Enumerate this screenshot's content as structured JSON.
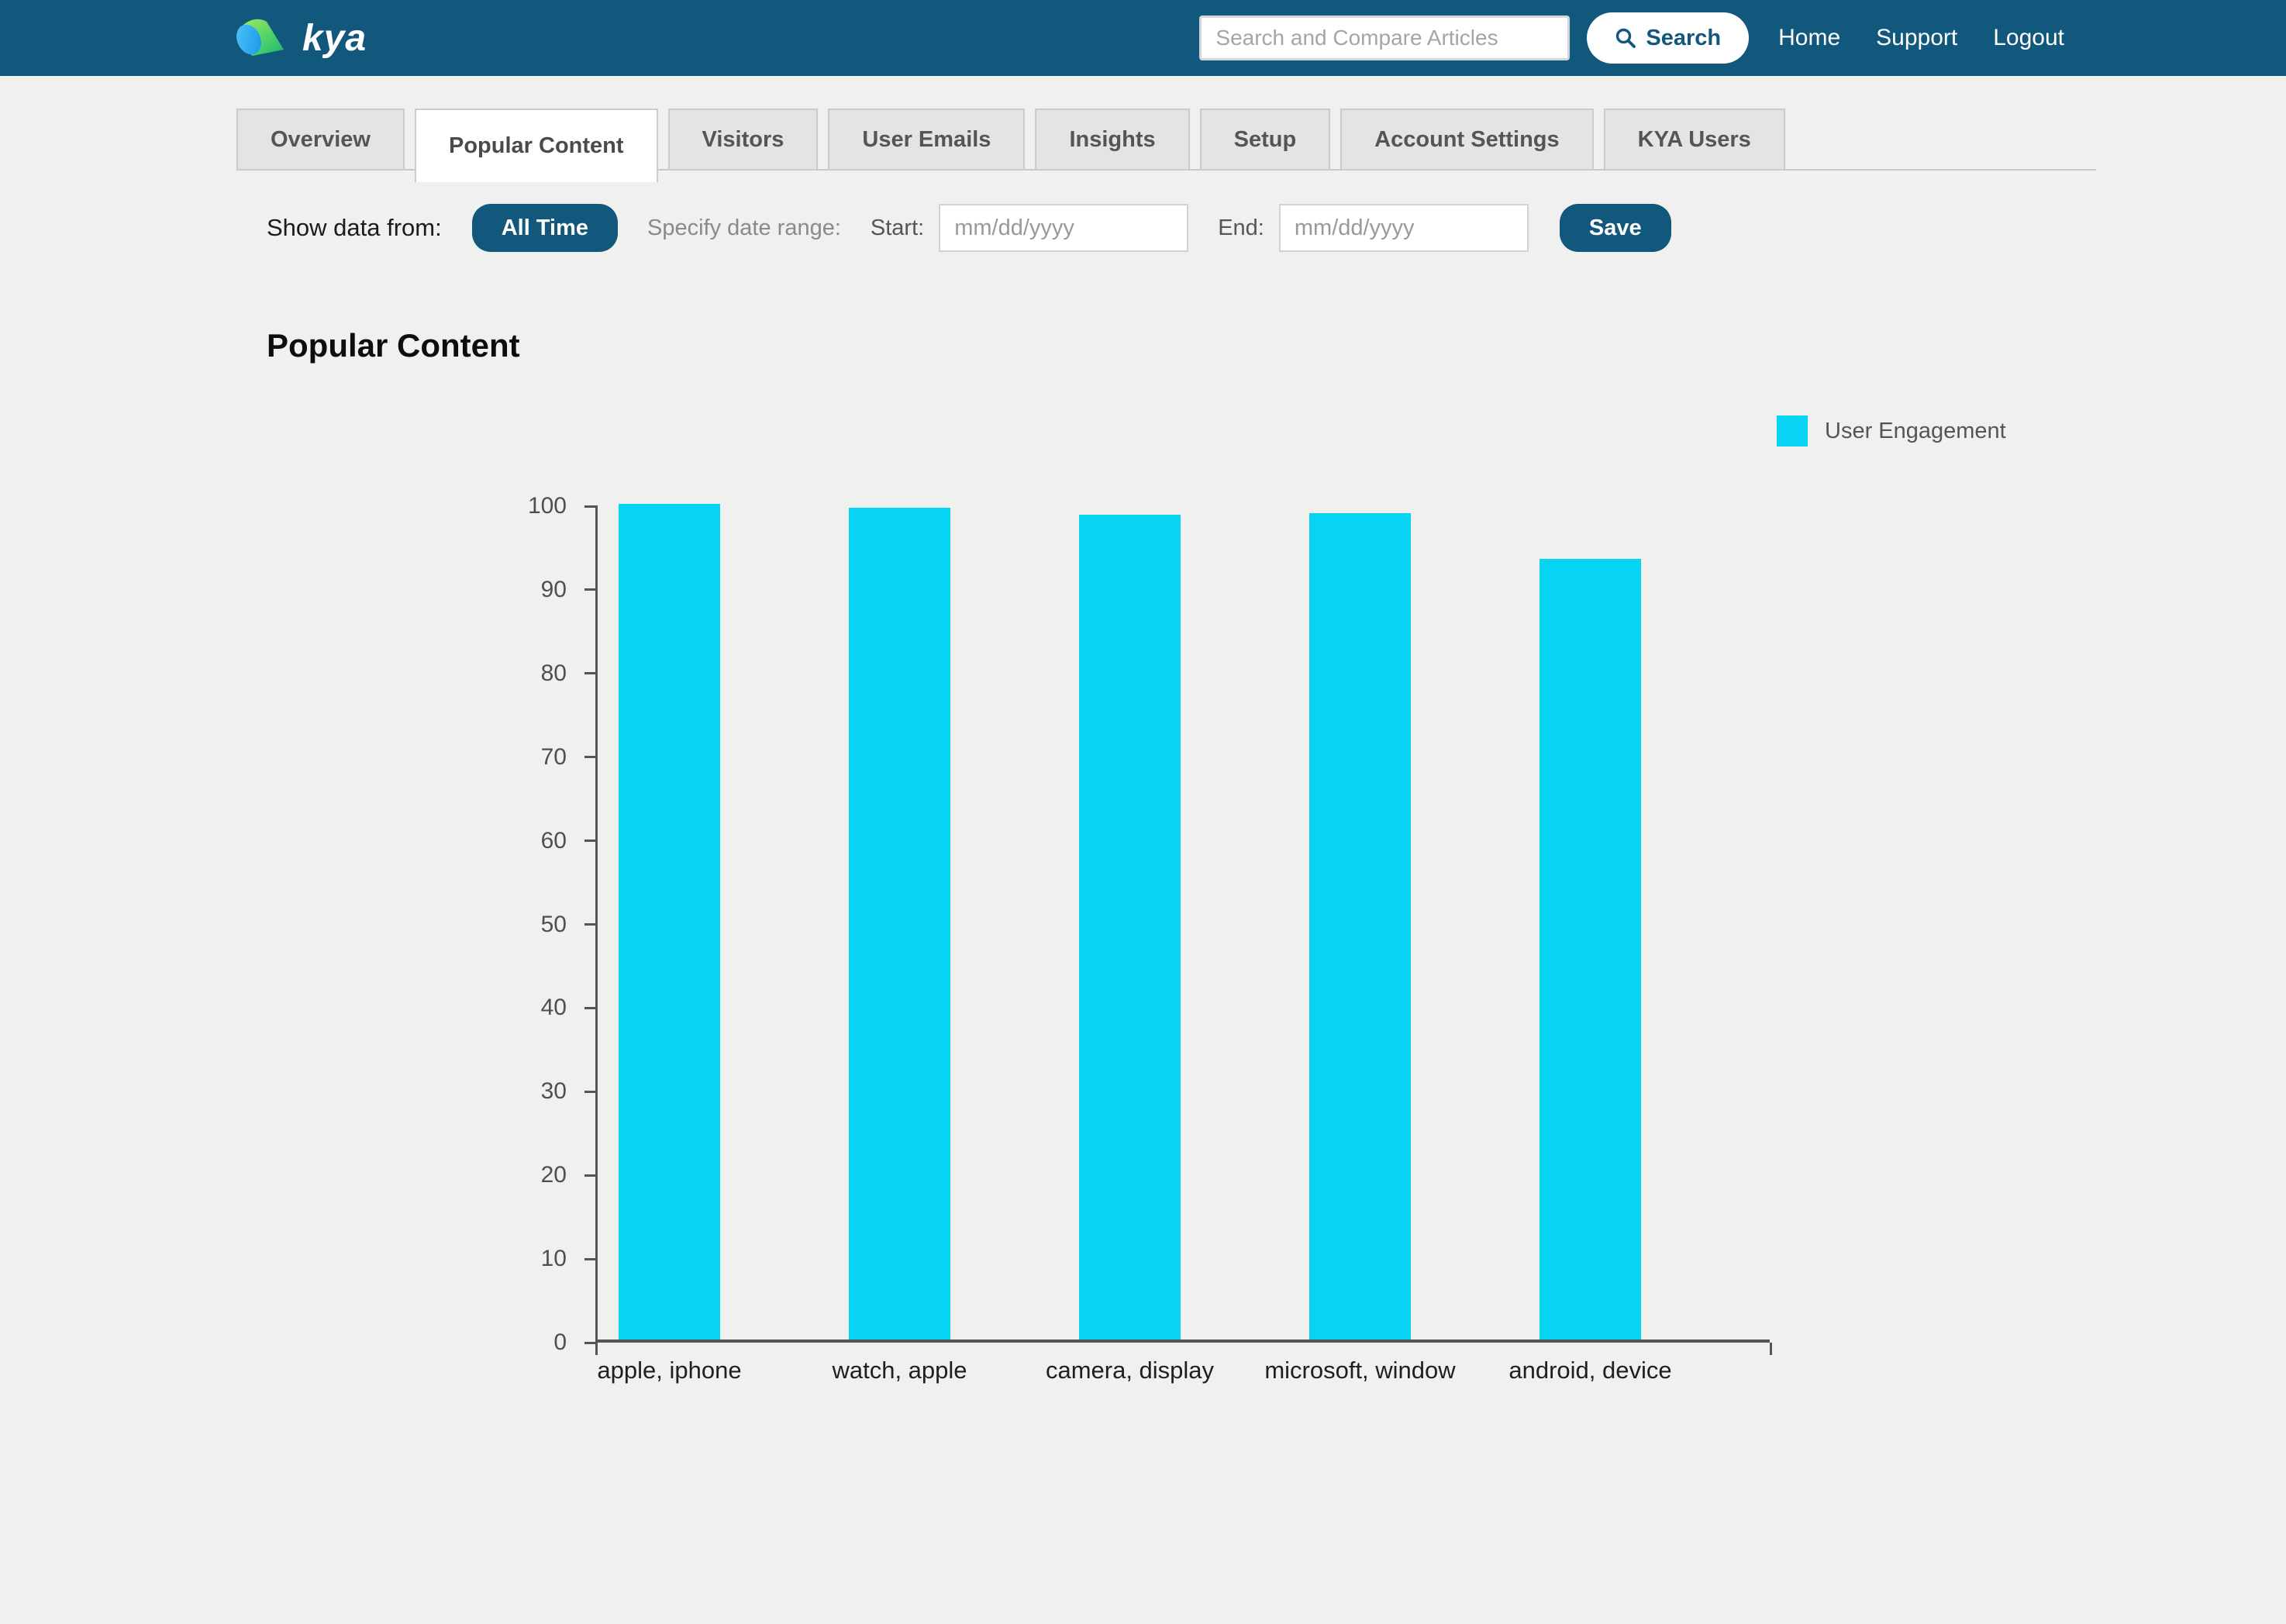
{
  "navbar": {
    "logo_text": "kya",
    "search_placeholder": "Search and Compare Articles",
    "search_button_label": "Search",
    "links": [
      {
        "label": "Home"
      },
      {
        "label": "Support"
      },
      {
        "label": "Logout"
      }
    ]
  },
  "tabs": [
    {
      "label": "Overview",
      "active": false
    },
    {
      "label": "Popular Content",
      "active": true
    },
    {
      "label": "Visitors",
      "active": false
    },
    {
      "label": "User Emails",
      "active": false
    },
    {
      "label": "Insights",
      "active": false
    },
    {
      "label": "Setup",
      "active": false
    },
    {
      "label": "Account Settings",
      "active": false
    },
    {
      "label": "KYA Users",
      "active": false
    }
  ],
  "filter": {
    "show_label": "Show data from:",
    "all_time_button": "All Time",
    "range_label": "Specify date range:",
    "start_label": "Start:",
    "start_placeholder": "mm/dd/yyyy",
    "end_label": "End:",
    "end_placeholder": "mm/dd/yyyy",
    "save_button": "Save"
  },
  "section_title": "Popular Content",
  "legend": {
    "label": "User Engagement",
    "color": "#06d4f2"
  },
  "chart_data": {
    "type": "bar",
    "title": "Popular Content",
    "categories": [
      "apple, iphone",
      "watch, apple",
      "camera, display",
      "microsoft, window",
      "android, device"
    ],
    "series": [
      {
        "name": "User Engagement",
        "values": [
          99.9,
          99.4,
          98.6,
          98.8,
          93.3
        ]
      }
    ],
    "xlabel": "",
    "ylabel": "",
    "ylim": [
      0,
      100
    ],
    "ytick_step": 10,
    "grid": false,
    "legend_position": "top-right",
    "bar_color": "#06d4f2"
  },
  "colors": {
    "navbar_background": "#12587C",
    "accent_navy": "#12587C",
    "bar_cyan": "#06d4f2",
    "page_background": "#f0f0ef",
    "tab_background": "#e4e4e3"
  }
}
